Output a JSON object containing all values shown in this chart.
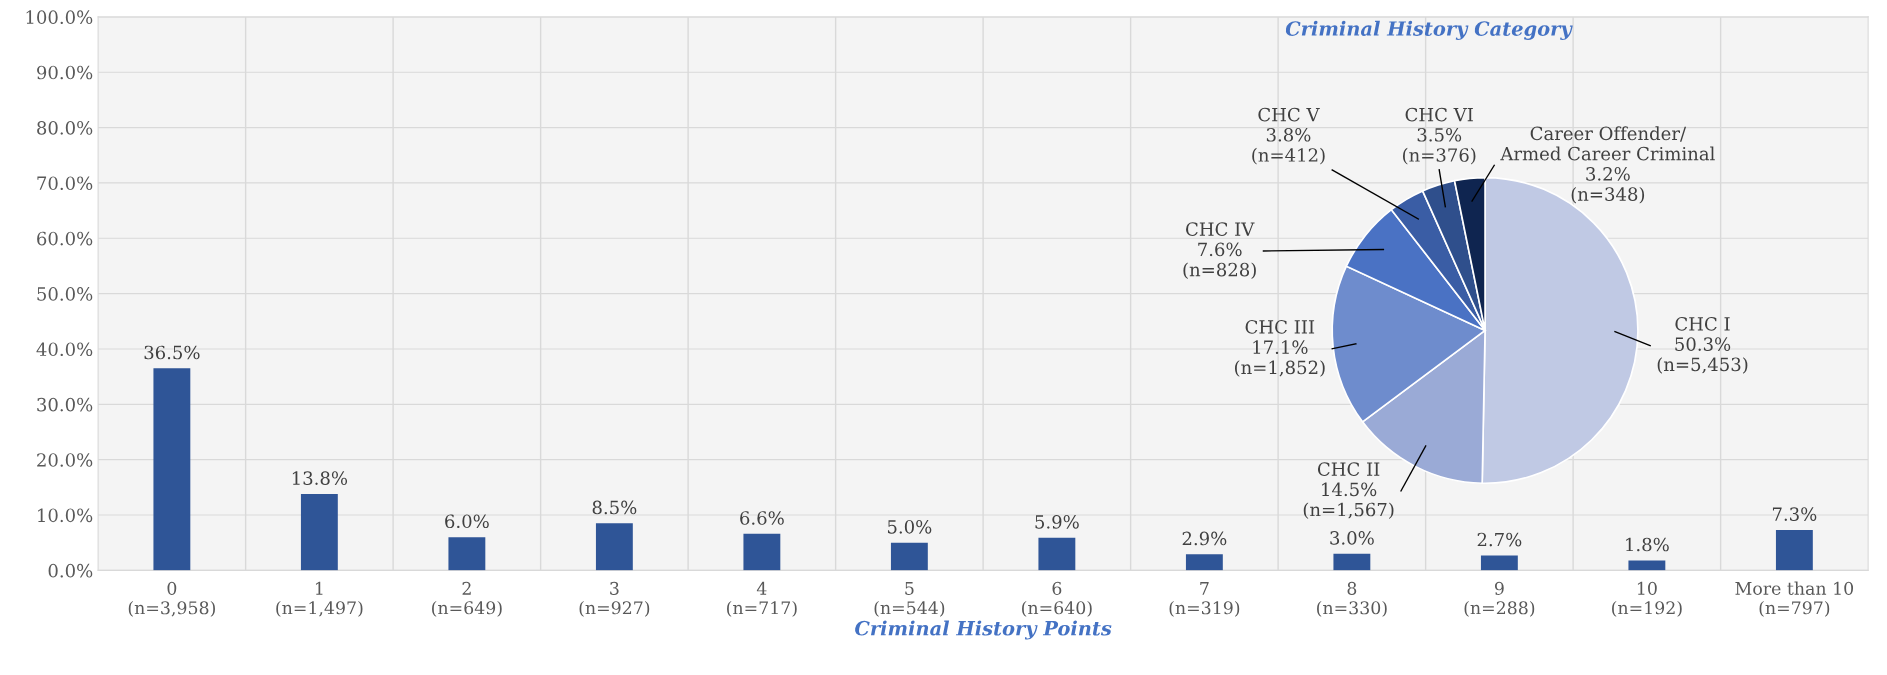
{
  "chart_data": [
    {
      "type": "bar",
      "xlabel": "Criminal History Points",
      "categories": [
        "0\n(n=3,958)",
        "1\n(n=1,497)",
        "2\n(n=649)",
        "3\n(n=927)",
        "4\n(n=717)",
        "5\n(n=544)",
        "6\n(n=640)",
        "7\n(n=319)",
        "8\n(n=330)",
        "9\n(n=288)",
        "10\n(n=192)",
        "More than 10\n(n=797)"
      ],
      "values": [
        36.5,
        13.8,
        6.0,
        8.5,
        6.6,
        5.0,
        5.9,
        2.9,
        3.0,
        2.7,
        1.8,
        7.3
      ],
      "color": "#2f5597",
      "value_labels": [
        "36.5%",
        "13.8%",
        "6.0%",
        "8.5%",
        "6.6%",
        "5.0%",
        "5.9%",
        "2.9%",
        "3.0%",
        "2.7%",
        "1.8%",
        "7.3%"
      ],
      "ylim": [
        0,
        100
      ],
      "yticks": [
        {
          "value": 0,
          "label": "0.0%"
        },
        {
          "value": 10,
          "label": "10.0%"
        },
        {
          "value": 20,
          "label": "20.0%"
        },
        {
          "value": 30,
          "label": "30.0%"
        },
        {
          "value": 40,
          "label": "40.0%"
        },
        {
          "value": 50,
          "label": "50.0%"
        },
        {
          "value": 60,
          "label": "60.0%"
        },
        {
          "value": 70,
          "label": "70.0%"
        },
        {
          "value": 80,
          "label": "80.0%"
        },
        {
          "value": 90,
          "label": "90.0%"
        },
        {
          "value": 100,
          "label": "100.0%"
        }
      ],
      "grid": true
    },
    {
      "type": "pie",
      "title": "Criminal History Category",
      "categories": [
        "CHC I",
        "CHC II",
        "CHC III",
        "CHC IV",
        "CHC V",
        "CHC VI",
        "Career Offender/\nArmed Career Criminal"
      ],
      "values": [
        50.3,
        14.5,
        17.1,
        7.6,
        3.8,
        3.5,
        3.2
      ],
      "colors": [
        "#c0c9e4",
        "#9aaad6",
        "#6e8ccd",
        "#4a72c4",
        "#3a5da5",
        "#2f4f8c",
        "#0f2550"
      ],
      "value_labels": [
        "50.3%\n(n=5,453)",
        "14.5%\n(n=1,567)",
        "17.1%\n(n=1,852)",
        "7.6%\n(n=828)",
        "3.8%\n(n=412)",
        "3.5%\n(n=376)",
        "3.2%\n(n=348)"
      ]
    }
  ]
}
